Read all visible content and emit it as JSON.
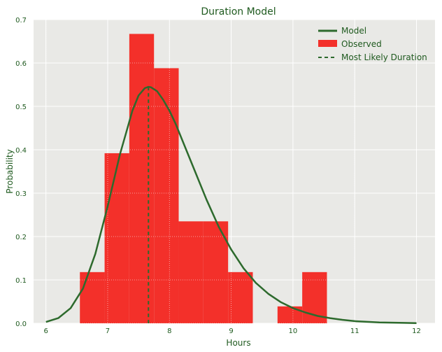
{
  "chart_data": {
    "type": "bar",
    "title": "Duration Model",
    "xlabel": "Hours",
    "ylabel": "Probability",
    "xlim": [
      5.8,
      12.3
    ],
    "ylim": [
      0,
      0.7
    ],
    "xticks": [
      "6",
      "7",
      "8",
      "9",
      "10",
      "11",
      "12"
    ],
    "yticks": [
      "0.0",
      "0.1",
      "0.2",
      "0.3",
      "0.4",
      "0.5",
      "0.6",
      "0.7"
    ],
    "grid": true,
    "legend_position": "top-right",
    "colors": {
      "background": "#e9e9e6",
      "bar": "#f3302a",
      "line": "#2d6a2d",
      "text": "#1f5a1f",
      "grid": "#ffffff"
    },
    "histogram": {
      "name": "Observed",
      "bins": [
        {
          "x0": 6.55,
          "x1": 6.95,
          "value": 0.118
        },
        {
          "x0": 6.95,
          "x1": 7.35,
          "value": 0.392
        },
        {
          "x0": 7.35,
          "x1": 7.75,
          "value": 0.667
        },
        {
          "x0": 7.75,
          "x1": 8.15,
          "value": 0.588
        },
        {
          "x0": 8.15,
          "x1": 8.55,
          "value": 0.235
        },
        {
          "x0": 8.55,
          "x1": 8.95,
          "value": 0.235
        },
        {
          "x0": 8.95,
          "x1": 9.35,
          "value": 0.118
        },
        {
          "x0": 9.35,
          "x1": 9.75,
          "value": 0.0
        },
        {
          "x0": 9.75,
          "x1": 10.15,
          "value": 0.039
        },
        {
          "x0": 10.15,
          "x1": 10.55,
          "value": 0.118
        }
      ]
    },
    "model_curve": {
      "name": "Model",
      "x": [
        6.0,
        6.2,
        6.4,
        6.6,
        6.8,
        7.0,
        7.1,
        7.2,
        7.3,
        7.4,
        7.5,
        7.6,
        7.66,
        7.7,
        7.8,
        7.9,
        8.0,
        8.1,
        8.2,
        8.4,
        8.6,
        8.8,
        9.0,
        9.2,
        9.4,
        9.6,
        9.8,
        10.0,
        10.2,
        10.4,
        10.6,
        10.8,
        11.0,
        11.4,
        11.8,
        12.0
      ],
      "y": [
        0.003,
        0.012,
        0.035,
        0.08,
        0.16,
        0.27,
        0.33,
        0.39,
        0.44,
        0.49,
        0.525,
        0.542,
        0.545,
        0.544,
        0.535,
        0.515,
        0.49,
        0.46,
        0.425,
        0.355,
        0.285,
        0.222,
        0.17,
        0.127,
        0.093,
        0.068,
        0.049,
        0.035,
        0.025,
        0.017,
        0.012,
        0.008,
        0.005,
        0.002,
        0.001,
        0.0005
      ]
    },
    "most_likely": {
      "name": "Most Likely Duration",
      "x": 7.66,
      "y": 0.545
    }
  }
}
